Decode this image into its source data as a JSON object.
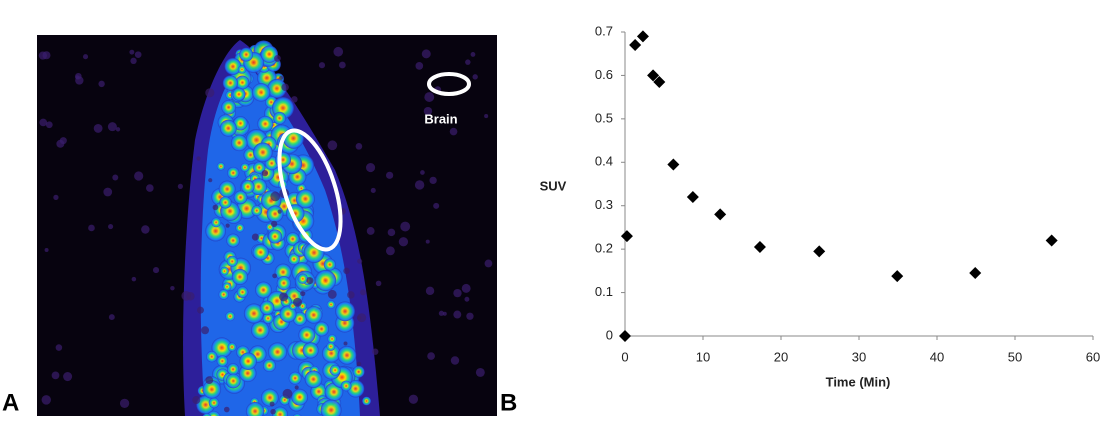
{
  "panel_a": {
    "label": "A",
    "legend_label": "Brain"
  },
  "panel_b": {
    "label": "B"
  },
  "chart_data": {
    "type": "scatter",
    "x_label": "Time (Min)",
    "y_label": "SUV",
    "color": "#000000",
    "marker": "diamond",
    "x": [
      0,
      0.25,
      1.3,
      2.3,
      3.6,
      4.4,
      6.2,
      8.7,
      12.2,
      17.3,
      24.9,
      34.9,
      44.9,
      54.7
    ],
    "values": [
      0,
      0.23,
      0.67,
      0.69,
      0.6,
      0.585,
      0.395,
      0.32,
      0.28,
      0.205,
      0.195,
      0.138,
      0.145,
      0.22
    ],
    "xlim": [
      0,
      60
    ],
    "xticks": [
      0,
      10,
      20,
      30,
      40,
      50,
      60
    ],
    "ylim": [
      0,
      0.7
    ],
    "yticks": [
      0,
      0.1,
      0.2,
      0.3,
      0.4,
      0.5,
      0.6,
      0.7
    ],
    "grid": false
  }
}
